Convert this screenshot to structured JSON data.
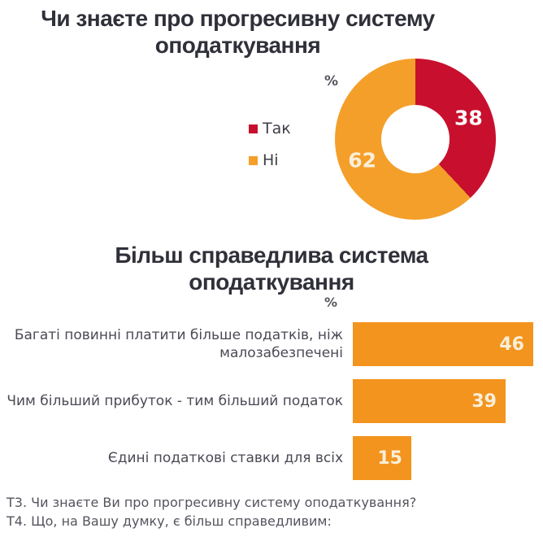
{
  "chart_data": [
    {
      "type": "pie",
      "subtype": "donut",
      "title": "Чи знаєте про прогресивну систему оподаткування",
      "unit_label": "%",
      "categories": [
        "Так",
        "Ні"
      ],
      "values": [
        38,
        62
      ],
      "colors": [
        "#c8102e",
        "#f49f2a"
      ],
      "value_label_colors": [
        "#ffffff",
        "#faefd8"
      ],
      "legend_position": "left",
      "start_angle_deg": 0,
      "direction": "clockwise",
      "data_labels": "inside"
    },
    {
      "type": "bar",
      "orientation": "horizontal",
      "title": "Більш справедлива система оподаткування",
      "unit_label": "%",
      "categories": [
        "Багаті повинні платити більше податків, ніж малозабезпечені",
        "Чим більший прибуток  - тим більший податок",
        "Єдині податкові ставки для всіх"
      ],
      "values": [
        46,
        39,
        15
      ],
      "bar_color": "#f3941e",
      "value_label_color": "#f9efd9",
      "xlim": [
        0,
        48
      ],
      "grid": false,
      "data_labels": "inside-end"
    }
  ],
  "footer": {
    "lines": [
      "Т3. Чи знаєте Ви про прогресивну систему оподаткування?",
      "Т4. Що, на Вашу думку, є більш справедливим:"
    ]
  }
}
